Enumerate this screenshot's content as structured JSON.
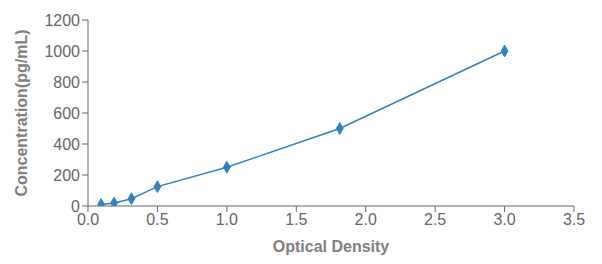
{
  "chart_data": {
    "type": "line",
    "xlabel": "Optical Density",
    "ylabel": "Concentration(pg/mL)",
    "x": [
      0.094,
      0.188,
      0.313,
      0.5,
      1.0,
      1.813,
      3.0
    ],
    "values": [
      9.375,
      18.75,
      46.875,
      125.0,
      250.0,
      500.0,
      1000.0
    ],
    "marker": "diamond",
    "xlim": [
      0,
      3.5
    ],
    "ylim": [
      0,
      1200
    ],
    "xticks": [
      {
        "value": 0,
        "label": "0.0"
      },
      0.5,
      {
        "value": 1.0,
        "label": "1.0"
      },
      1.5,
      {
        "value": 2.0,
        "label": "2.0"
      },
      2.5,
      {
        "value": 3.0,
        "label": "3.0"
      },
      3.5
    ],
    "yticks": [
      0,
      200,
      400,
      600,
      800,
      1000,
      1200
    ]
  }
}
